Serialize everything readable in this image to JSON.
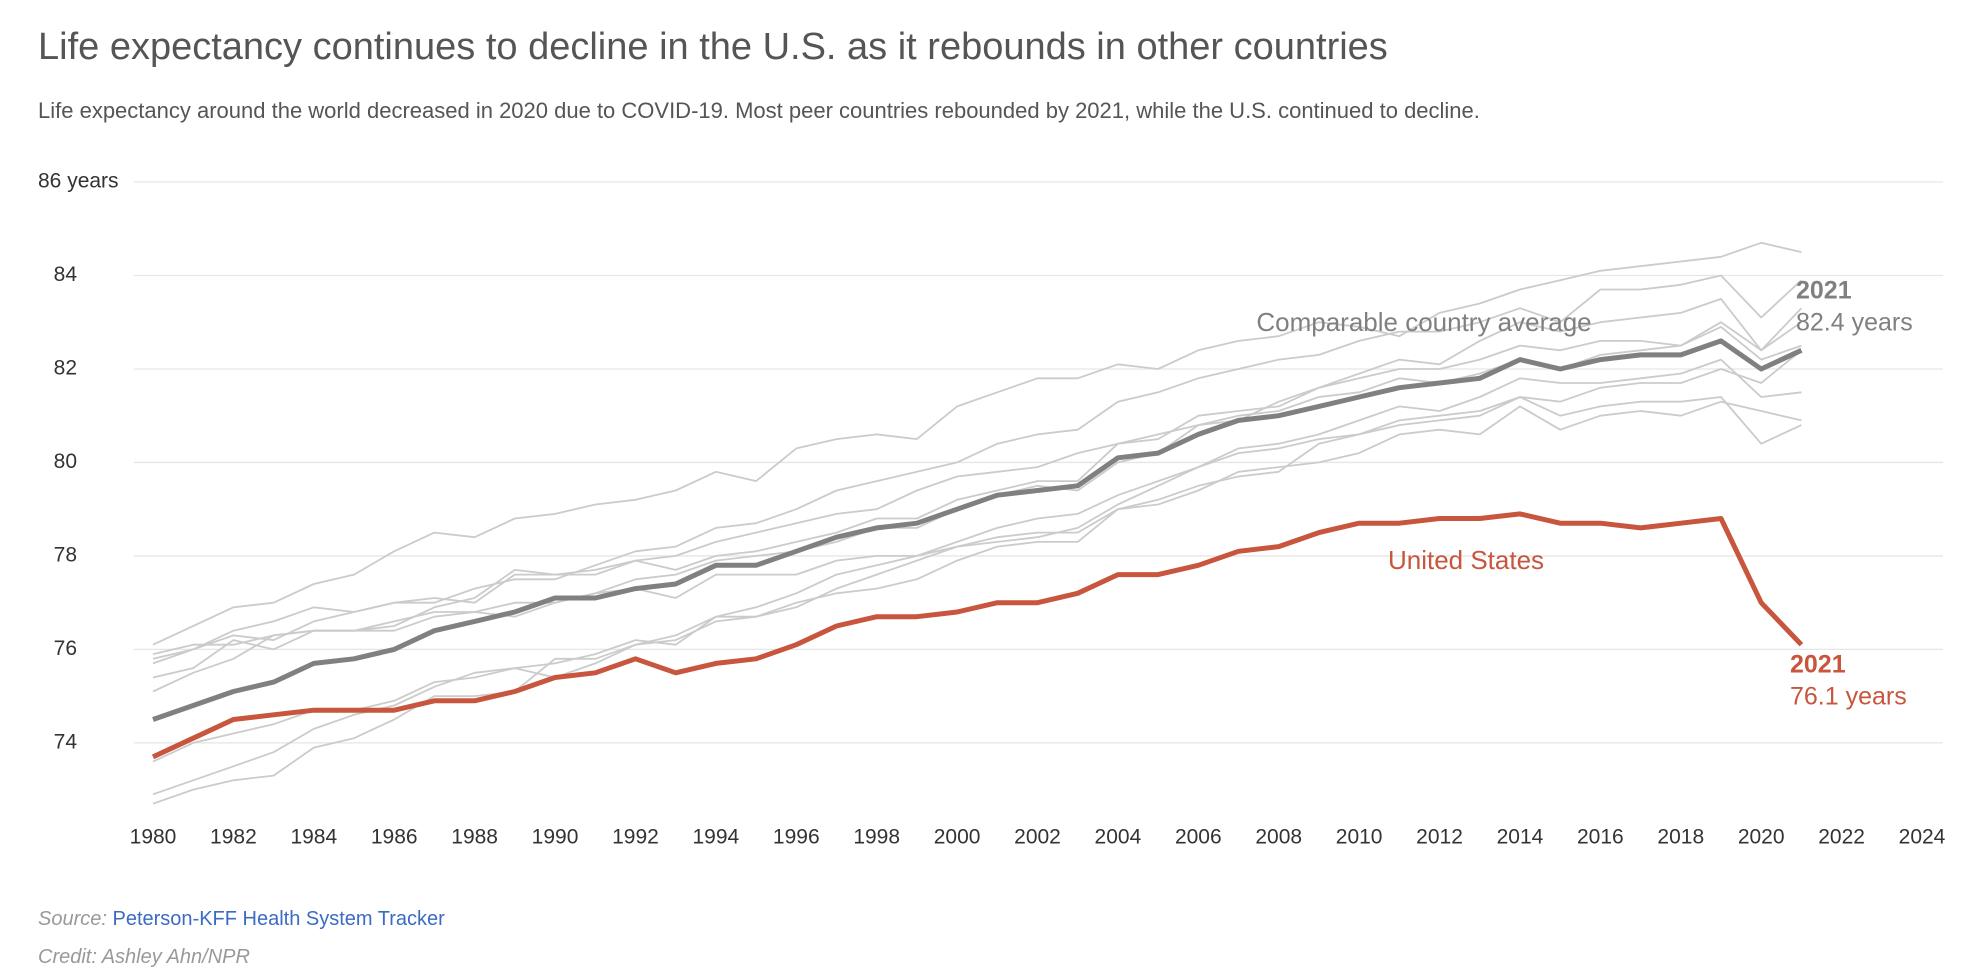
{
  "chart_data": {
    "type": "line",
    "title": "Life expectancy continues to decline in the U.S. as it rebounds in other countries",
    "subtitle": "Life expectancy around the world decreased in 2020 due to COVID-19. Most peer countries rebounded by 2021, while the U.S. continued to decline.",
    "x": [
      1980,
      1981,
      1982,
      1983,
      1984,
      1985,
      1986,
      1987,
      1988,
      1989,
      1990,
      1991,
      1992,
      1993,
      1994,
      1995,
      1996,
      1997,
      1998,
      1999,
      2000,
      2001,
      2002,
      2003,
      2004,
      2005,
      2006,
      2007,
      2008,
      2009,
      2010,
      2011,
      2012,
      2013,
      2014,
      2015,
      2016,
      2017,
      2018,
      2019,
      2020,
      2021
    ],
    "xlim": [
      1980,
      2024
    ],
    "xticks": [
      1980,
      1982,
      1984,
      1986,
      1988,
      1990,
      1992,
      1994,
      1996,
      1998,
      2000,
      2002,
      2004,
      2006,
      2008,
      2010,
      2012,
      2014,
      2016,
      2018,
      2020,
      2022,
      2024
    ],
    "ylim": [
      72.5,
      86
    ],
    "yticks": [
      74,
      76,
      78,
      80,
      82,
      84,
      {
        "value": 86,
        "label": "86 years"
      }
    ],
    "grid": true,
    "series": [
      {
        "color": "#cbcbcb",
        "values": [
          76.1,
          76.5,
          76.9,
          77.0,
          77.4,
          77.6,
          78.1,
          78.5,
          78.4,
          78.8,
          78.9,
          79.1,
          79.2,
          79.4,
          79.8,
          79.6,
          80.3,
          80.5,
          80.6,
          80.5,
          81.2,
          81.5,
          81.8,
          81.8,
          82.1,
          82.0,
          82.4,
          82.6,
          82.7,
          83.0,
          82.9,
          82.7,
          83.2,
          83.4,
          83.7,
          83.9,
          84.1,
          84.2,
          84.3,
          84.4,
          84.7,
          84.5
        ]
      },
      {
        "color": "#cbcbcb",
        "values": [
          75.7,
          76.0,
          76.3,
          76.2,
          76.6,
          76.8,
          77.0,
          77.0,
          77.3,
          77.5,
          77.5,
          77.8,
          78.1,
          78.2,
          78.6,
          78.7,
          79.0,
          79.4,
          79.6,
          79.8,
          80.0,
          80.4,
          80.6,
          80.7,
          81.3,
          81.5,
          81.8,
          82.0,
          82.2,
          82.3,
          82.6,
          82.8,
          82.8,
          83.0,
          83.3,
          83.0,
          83.7,
          83.7,
          83.8,
          84.0,
          83.1,
          83.9
        ]
      },
      {
        "color": "#cbcbcb",
        "values": [
          75.4,
          75.6,
          76.2,
          76.0,
          76.4,
          76.4,
          76.6,
          76.8,
          76.8,
          77.0,
          77.0,
          77.2,
          77.5,
          77.6,
          77.9,
          78.0,
          78.1,
          78.3,
          78.6,
          78.6,
          79.0,
          79.3,
          79.5,
          79.4,
          80.0,
          80.2,
          80.8,
          80.9,
          81.3,
          81.6,
          81.9,
          82.2,
          82.1,
          82.6,
          83.0,
          82.8,
          83.0,
          83.1,
          83.2,
          83.5,
          82.4,
          83.3
        ]
      },
      {
        "color": "#cbcbcb",
        "values": [
          75.8,
          76.0,
          76.4,
          76.6,
          76.9,
          76.8,
          77.0,
          77.1,
          77.0,
          77.6,
          77.6,
          77.6,
          77.9,
          78.0,
          78.3,
          78.5,
          78.7,
          78.9,
          79.0,
          79.4,
          79.7,
          79.8,
          79.9,
          80.2,
          80.4,
          80.6,
          80.8,
          81.0,
          81.1,
          81.4,
          81.5,
          81.8,
          81.7,
          81.9,
          82.2,
          82.0,
          82.3,
          82.4,
          82.5,
          83.0,
          82.4,
          83.0
        ]
      },
      {
        "color": "#cbcbcb",
        "values": [
          75.9,
          76.1,
          76.1,
          76.3,
          76.4,
          76.4,
          76.4,
          76.7,
          76.8,
          76.7,
          77.0,
          77.2,
          77.3,
          77.1,
          77.6,
          77.6,
          77.6,
          77.9,
          78.0,
          78.0,
          78.2,
          78.3,
          78.4,
          78.6,
          79.1,
          79.5,
          79.9,
          80.3,
          80.4,
          80.6,
          80.9,
          81.2,
          81.1,
          81.4,
          81.8,
          81.7,
          81.7,
          81.8,
          81.9,
          82.2,
          81.4,
          81.5
        ]
      },
      {
        "color": "#cbcbcb",
        "values": [
          73.6,
          74.0,
          74.2,
          74.4,
          74.7,
          74.7,
          74.9,
          75.3,
          75.4,
          75.6,
          75.7,
          75.9,
          76.2,
          76.1,
          76.7,
          76.7,
          77.0,
          77.2,
          77.3,
          77.5,
          77.9,
          78.2,
          78.3,
          78.3,
          79.0,
          79.2,
          79.5,
          79.7,
          79.8,
          80.4,
          80.6,
          80.9,
          81.0,
          81.1,
          81.4,
          81.0,
          81.2,
          81.3,
          81.3,
          81.4,
          80.4,
          80.8
        ]
      },
      {
        "color": "#cbcbcb",
        "values": [
          72.9,
          73.2,
          73.5,
          73.8,
          74.3,
          74.6,
          74.8,
          75.2,
          75.5,
          75.6,
          75.4,
          75.7,
          76.1,
          76.2,
          76.6,
          76.7,
          76.9,
          77.3,
          77.6,
          77.9,
          78.2,
          78.4,
          78.5,
          78.5,
          79.0,
          79.1,
          79.4,
          79.8,
          79.9,
          80.0,
          80.2,
          80.6,
          80.7,
          80.6,
          81.2,
          80.7,
          81.0,
          81.1,
          81.0,
          81.3,
          81.1,
          80.9
        ]
      },
      {
        "color": "#cbcbcb",
        "values": [
          72.7,
          73.0,
          73.2,
          73.3,
          73.9,
          74.1,
          74.5,
          75.0,
          75.0,
          75.1,
          75.8,
          75.8,
          76.1,
          76.3,
          76.7,
          76.9,
          77.2,
          77.6,
          77.8,
          78.0,
          78.3,
          78.6,
          78.8,
          78.9,
          79.3,
          79.6,
          79.9,
          80.2,
          80.3,
          80.5,
          80.6,
          80.8,
          80.9,
          81.0,
          81.4,
          81.3,
          81.6,
          81.7,
          81.7,
          82.0,
          81.7,
          82.4
        ]
      },
      {
        "color": "#cbcbcb",
        "values": [
          75.1,
          75.5,
          75.8,
          76.3,
          76.4,
          76.4,
          76.5,
          76.9,
          77.1,
          77.7,
          77.6,
          77.7,
          77.9,
          77.7,
          78.0,
          78.1,
          78.3,
          78.5,
          78.8,
          78.8,
          79.2,
          79.4,
          79.6,
          79.6,
          80.4,
          80.5,
          81.0,
          81.1,
          81.2,
          81.6,
          81.8,
          82.0,
          82.0,
          82.2,
          82.5,
          82.4,
          82.6,
          82.6,
          82.5,
          82.9,
          82.2,
          82.5
        ]
      },
      {
        "name": "Comparable country average",
        "color": "#808080",
        "values": [
          74.5,
          74.8,
          75.1,
          75.3,
          75.7,
          75.8,
          76.0,
          76.4,
          76.6,
          76.8,
          77.1,
          77.1,
          77.3,
          77.4,
          77.8,
          77.8,
          78.1,
          78.4,
          78.6,
          78.7,
          79.0,
          79.3,
          79.4,
          79.5,
          80.1,
          80.2,
          80.6,
          80.9,
          81.0,
          81.2,
          81.4,
          81.6,
          81.7,
          81.8,
          82.2,
          82.0,
          82.2,
          82.3,
          82.3,
          82.6,
          82.0,
          82.4
        ]
      },
      {
        "name": "United States",
        "color": "#c8553d",
        "values": [
          73.7,
          74.1,
          74.5,
          74.6,
          74.7,
          74.7,
          74.7,
          74.9,
          74.9,
          75.1,
          75.4,
          75.5,
          75.8,
          75.5,
          75.7,
          75.8,
          76.1,
          76.5,
          76.7,
          76.7,
          76.8,
          77.0,
          77.0,
          77.2,
          77.6,
          77.6,
          77.8,
          78.1,
          78.2,
          78.5,
          78.7,
          78.7,
          78.8,
          78.8,
          78.9,
          78.7,
          78.7,
          78.6,
          78.7,
          78.8,
          77.0,
          76.1
        ]
      }
    ],
    "annotations": [
      "2021",
      "82.4 years",
      "2021",
      "76.1 years"
    ],
    "source_label": "Source:",
    "source": "Peterson-KFF Health System Tracker",
    "credit": "Credit: Ashley Ahn/NPR"
  }
}
